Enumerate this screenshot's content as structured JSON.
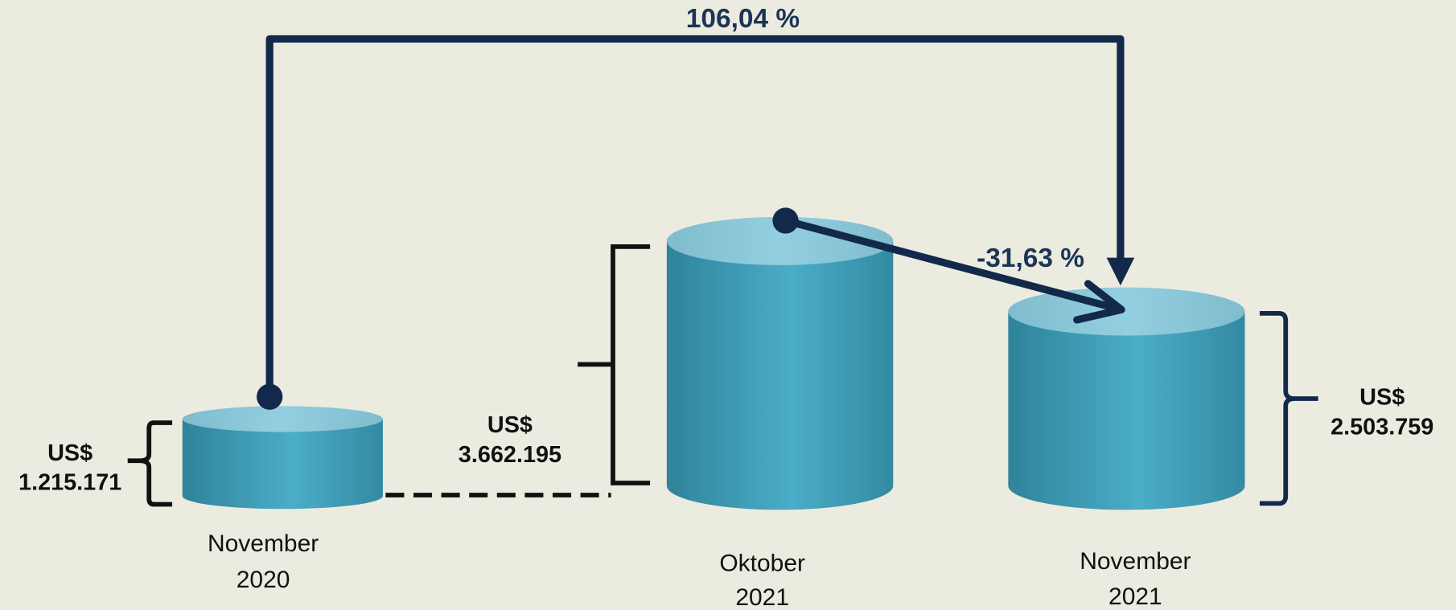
{
  "items": [
    {
      "currency": "US$",
      "amount": "1.215.171",
      "period": [
        "November",
        "2020"
      ]
    },
    {
      "currency": "US$",
      "amount": "3.662.195",
      "period": [
        "Oktober",
        "2021"
      ]
    },
    {
      "currency": "US$",
      "amount": "2.503.759",
      "period": [
        "November",
        "2021"
      ]
    }
  ],
  "changes": {
    "overall": "106,04 %",
    "monthly": "-31,63 %"
  }
}
